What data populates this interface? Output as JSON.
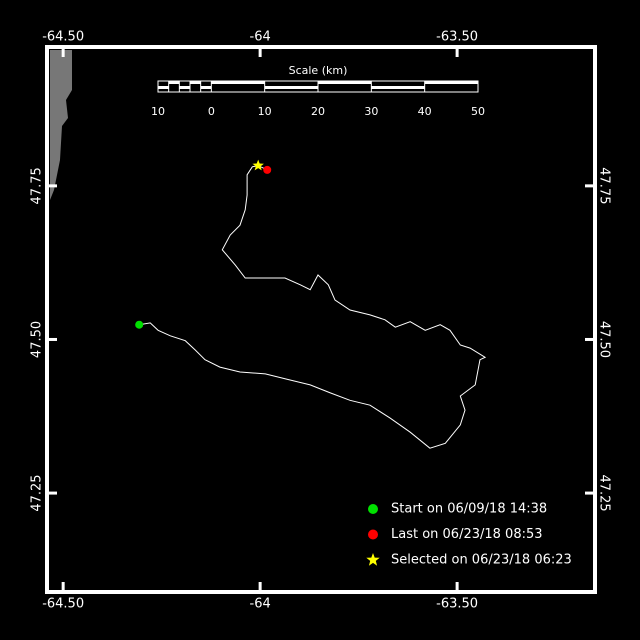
{
  "chart_data": {
    "type": "line",
    "color": "#ffffff",
    "xlim": [
      -64.541,
      -63.15
    ],
    "ylim": [
      47.089,
      47.976
    ],
    "xticks": [
      {
        "value": -64.5,
        "label": "-64.50"
      },
      -64,
      {
        "value": -63.5,
        "label": "-63.50"
      }
    ],
    "yticks": [
      47.25,
      {
        "value": 47.5,
        "label": "47.50"
      },
      47.75
    ],
    "x": [
      -64.307,
      -64.279,
      -64.259,
      -64.228,
      -64.19,
      -64.165,
      -64.14,
      -64.102,
      -64.051,
      -63.987,
      -63.924,
      -63.873,
      -63.822,
      -63.772,
      -63.721,
      -63.67,
      -63.619,
      -63.569,
      -63.53,
      -63.492,
      -63.48,
      -63.492,
      -63.454,
      -63.442,
      -63.429,
      -63.467,
      -63.492,
      -63.518,
      -63.543,
      -63.581,
      -63.619,
      -63.657,
      -63.683,
      -63.721,
      -63.772,
      -63.81,
      -63.827,
      -63.853,
      -63.873,
      -63.898,
      -63.937,
      -63.987,
      -64.038,
      -64.063,
      -64.096,
      -64.076,
      -64.051,
      -64.038,
      -64.033,
      -64.033,
      -64.02,
      -64.005,
      -63.982
    ],
    "values": [
      47.524,
      47.527,
      47.515,
      47.506,
      47.498,
      47.483,
      47.467,
      47.455,
      47.447,
      47.444,
      47.434,
      47.426,
      47.413,
      47.401,
      47.393,
      47.372,
      47.349,
      47.323,
      47.331,
      47.361,
      47.385,
      47.408,
      47.426,
      47.467,
      47.471,
      47.486,
      47.491,
      47.515,
      47.524,
      47.515,
      47.529,
      47.52,
      47.532,
      47.54,
      47.548,
      47.564,
      47.589,
      47.605,
      47.581,
      47.589,
      47.6,
      47.6,
      47.6,
      47.621,
      47.646,
      47.67,
      47.686,
      47.711,
      47.735,
      47.768,
      47.781,
      47.783,
      47.776
    ],
    "markers": [
      {
        "label": "Start on 06/09/18 14:38",
        "x": -64.307,
        "y": 47.524,
        "color": "#00e000",
        "shape": "circle"
      },
      {
        "label": "Last on 06/23/18 08:53",
        "x": -63.982,
        "y": 47.776,
        "color": "#ff0000",
        "shape": "circle"
      },
      {
        "label": "Selected on 06/23/18 06:23",
        "x": -64.005,
        "y": 47.783,
        "color": "#ffff00",
        "shape": "star"
      }
    ],
    "scale_bar": {
      "title": "Scale (km)",
      "ticks": [
        {
          "value": -10,
          "label": "10"
        },
        0,
        10,
        20,
        30,
        40,
        50
      ]
    }
  }
}
